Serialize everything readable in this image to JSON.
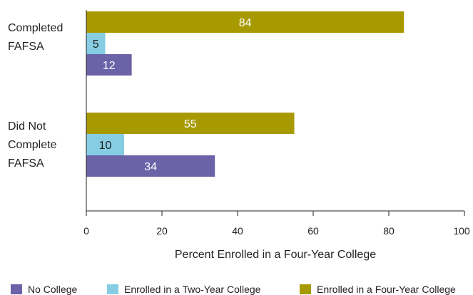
{
  "chart_data": {
    "type": "bar",
    "orientation": "horizontal",
    "title": "",
    "xlabel": "Percent Enrolled in a Four-Year College",
    "ylabel": "",
    "xlim": [
      0,
      100
    ],
    "xticks": [
      "0",
      "20",
      "40",
      "60",
      "80",
      "100"
    ],
    "grid": false,
    "legend_position": "bottom",
    "categories": [
      [
        "Completed",
        "FAFSA"
      ],
      [
        "Did Not",
        "Complete",
        "FAFSA"
      ]
    ],
    "series": [
      {
        "name": "Enrolled in a Four-Year College",
        "color": "#a79a00",
        "label_color": "#ffffff",
        "values": [
          84,
          55
        ]
      },
      {
        "name": "Enrolled in a Two-Year College",
        "color": "#86cde3",
        "label_color": "#231f20",
        "values": [
          5,
          10
        ]
      },
      {
        "name": "No College",
        "color": "#6b62a8",
        "label_color": "#ffffff",
        "values": [
          12,
          34
        ]
      }
    ],
    "legend": [
      {
        "name": "No College",
        "color": "#6b62a8"
      },
      {
        "name": "Enrolled in a Two-Year College",
        "color": "#86cde3"
      },
      {
        "name": "Enrolled in a Four-Year College",
        "color": "#a79a00"
      }
    ]
  }
}
